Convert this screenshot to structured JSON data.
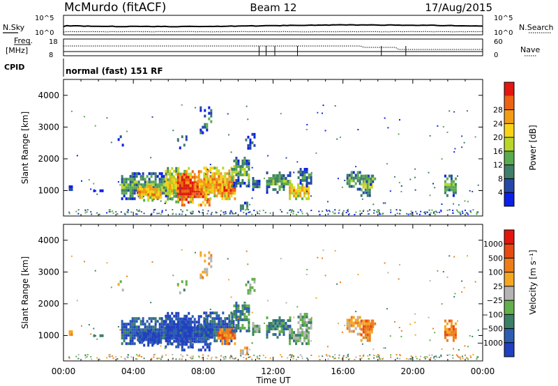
{
  "header": {
    "station": "McMurdo (fitACF)",
    "beam": "Beam 12",
    "date": "17/Aug/2015"
  },
  "strip_labels": {
    "nsky": "N.Sky",
    "nsearch": "N.Search",
    "freq": "Freq.",
    "mhz": "[MHz]",
    "nave": "Nave",
    "cpid": "CPID",
    "noise_top": "10^5",
    "noise_bottom": "10^0",
    "freq_top": "18",
    "freq_bottom": "8",
    "nave_top": "60",
    "nave_bottom": "0",
    "mode_text": "normal (fast) 151 RF"
  },
  "colors": {
    "power_scale": [
      "#0a1fe8",
      "#2548a8",
      "#3f7f6a",
      "#5aab4e",
      "#b9d62a",
      "#f7d417",
      "#f29c16",
      "#ec6412",
      "#e2170f"
    ],
    "velocity_scale": [
      "#2140c0",
      "#2c5db0",
      "#3b7f67",
      "#63b04a",
      "#b4b4b4",
      "#f5a623",
      "#ee7d18",
      "#e84a12",
      "#e3160e"
    ]
  },
  "chart_data": [
    {
      "type": "heatmap",
      "title": "Power",
      "ylabel": "Slant Range [km]",
      "ylim": [
        200,
        4500
      ],
      "yticks": [
        "1000",
        "2000",
        "3000",
        "4000"
      ],
      "xlim_hours": [
        0,
        24
      ],
      "xticks": [
        "00:00",
        "04:00",
        "08:00",
        "12:00",
        "16:00",
        "20:00",
        "00:00"
      ],
      "colorbar_label": "Power [dB]",
      "colorbar_ticks": [
        "4",
        "8",
        "12",
        "16",
        "20",
        "24",
        "28"
      ],
      "grid": false
    },
    {
      "type": "heatmap",
      "title": "Velocity",
      "ylabel": "Slant Range [km]",
      "ylim": [
        200,
        4500
      ],
      "yticks": [
        "1000",
        "2000",
        "3000",
        "4000"
      ],
      "xlim_hours": [
        0,
        24
      ],
      "xticks": [
        "00:00",
        "04:00",
        "08:00",
        "12:00",
        "16:00",
        "20:00",
        "00:00"
      ],
      "xlabel": "Time UT",
      "colorbar_label": "Velocity [m s⁻¹]",
      "colorbar_ticks": [
        "1000",
        "500",
        "100",
        "25",
        "−25",
        "−100",
        "−500",
        "−1000"
      ],
      "grid": false
    }
  ]
}
